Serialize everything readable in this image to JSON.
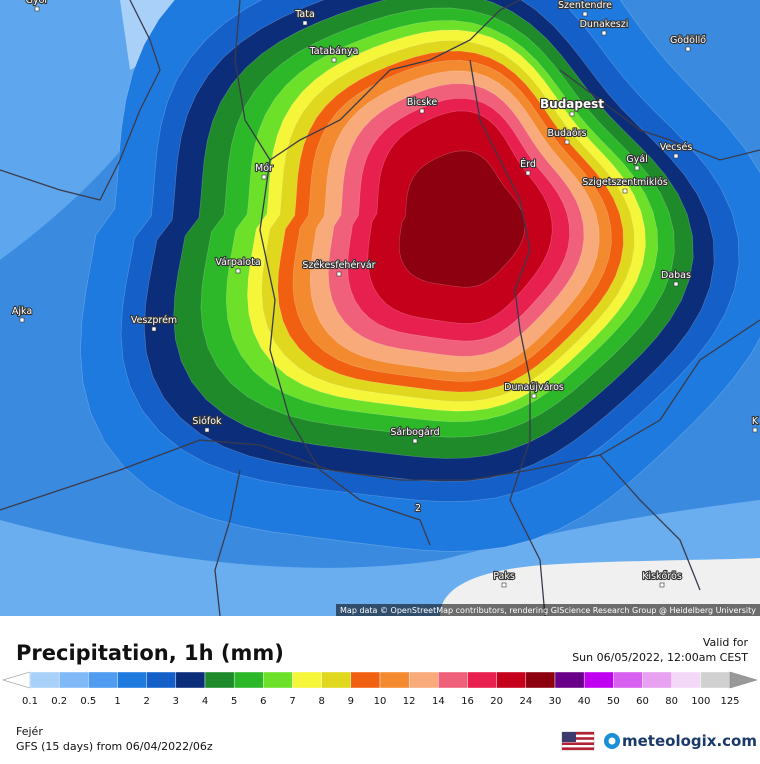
{
  "map": {
    "attribution": "Map data © OpenStreetMap contributors, rendering GIScience Research Group @ Heidelberg University",
    "contour_label": "2",
    "cities": [
      "Győr",
      "Tata",
      "Szentendre",
      "Dunakeszi",
      "Gödöllő",
      "Tatabánya",
      "Bicske",
      "Budapest",
      "Budaörs",
      "Érd",
      "Gyál",
      "Vecsés",
      "Szigetszentmiklós",
      "Mór",
      "Várpalota",
      "Székesfehérvár",
      "Dabas",
      "Ajka",
      "Veszprém",
      "Dunaújváros",
      "Siófok",
      "Sárbogárd",
      "Paks",
      "Kiskőrös",
      "K"
    ]
  },
  "legend": {
    "title": "Precipitation, 1h (mm)",
    "valid_label": "Valid for",
    "valid_time": "Sun 06/05/2022, 12:00am CEST",
    "levels": [
      0.1,
      0.2,
      0.5,
      1,
      2,
      3,
      4,
      5,
      6,
      7,
      8,
      9,
      10,
      12,
      14,
      16,
      20,
      24,
      30,
      40,
      50,
      60,
      80,
      100,
      125
    ],
    "colors": [
      "#a8d0f8",
      "#80b8f8",
      "#4f9cf0",
      "#1f7ae0",
      "#1560c8",
      "#0c2e7a",
      "#1f8a2a",
      "#2db82a",
      "#6de02a",
      "#f5f53a",
      "#e0d81e",
      "#f06010",
      "#f48a30",
      "#f8aa7a",
      "#f0607a",
      "#e82050",
      "#c4001a",
      "#8c0010",
      "#6a0088",
      "#c000f0",
      "#d860f0",
      "#e8a0f0",
      "#f4d8f8",
      "#d0d0d0"
    ]
  },
  "footer": {
    "region": "Fejér",
    "model": "GFS (15 days) from 06/04/2022/06z",
    "brand": "meteologix.com"
  }
}
